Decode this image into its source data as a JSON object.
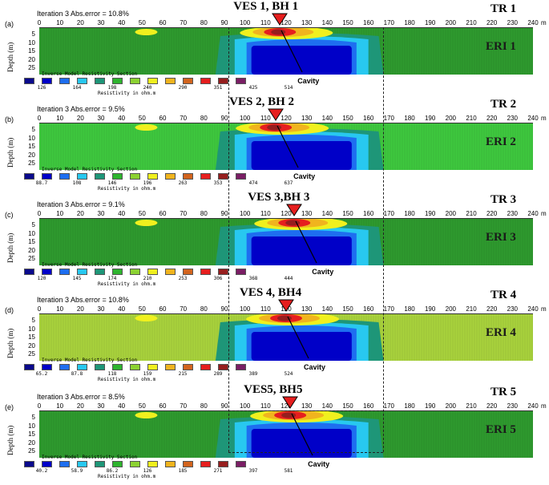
{
  "x_ticks": [
    "0",
    "10",
    "20",
    "30",
    "40",
    "50",
    "60",
    "70",
    "80",
    "90",
    "100",
    "110",
    "120",
    "130",
    "140",
    "150",
    "160",
    "170",
    "180",
    "190",
    "200",
    "210",
    "220",
    "230",
    "240"
  ],
  "x_unit": "m",
  "depth_ticks": [
    "5",
    "10",
    "15",
    "20",
    "25"
  ],
  "depth_title": "Depth (m)",
  "cavity_label": "Cavity",
  "legend_title": "Inverse Model Resistivity Section",
  "legend_unit": "Resistivity in ohm.m",
  "legend_colors": [
    "#0a0a8c",
    "#0000c8",
    "#1e6ef0",
    "#28c8f0",
    "#1e9678",
    "#2eb42e",
    "#8cd232",
    "#f0f01e",
    "#f0b41e",
    "#d2641e",
    "#e61e1e",
    "#961e1e",
    "#7a1e64"
  ],
  "panels": [
    {
      "tag": "(a)",
      "iteration": "Iteration 3 Abs.error = 10.8%",
      "tr": "TR 1",
      "ves": "VES 1, BH 1",
      "eri": "ERI  1",
      "legend_values": [
        "126",
        "164",
        "198",
        "240",
        "290",
        "351",
        "425",
        "514"
      ],
      "bg": "#2e9a2e",
      "cavity_center_m": 117
    },
    {
      "tag": "(b)",
      "iteration": "Iteration 3 Abs.error = 9.5%",
      "tr": "TR 2",
      "ves": "VES 2, BH 2",
      "eri": "ERI   2",
      "legend_values": [
        "88.7",
        "108",
        "146",
        "196",
        "263",
        "353",
        "474",
        "637"
      ],
      "bg": "#3ec83e",
      "cavity_center_m": 115
    },
    {
      "tag": "(c)",
      "iteration": "Iteration 3 Abs.error = 9.1%",
      "tr": "TR 3",
      "ves": "VES 3,BH 3",
      "eri": "ERI  3",
      "legend_values": [
        "120",
        "145",
        "174",
        "210",
        "253",
        "306",
        "368",
        "444"
      ],
      "bg": "#2e9a2e",
      "cavity_center_m": 124
    },
    {
      "tag": "(d)",
      "iteration": "Iteration 3 Abs.error = 10.8%",
      "tr": "TR 4",
      "ves": "VES 4, BH4",
      "eri": "ERI  4",
      "legend_values": [
        "65.2",
        "87.8",
        "118",
        "159",
        "215",
        "289",
        "389",
        "524"
      ],
      "bg": "#a8d23c",
      "cavity_center_m": 120
    },
    {
      "tag": "(e)",
      "iteration": "Iteration 3 Abs.error = 8.5%",
      "tr": "TR 5",
      "ves": "VES5, BH5",
      "eri": "ERI   5",
      "legend_values": [
        "40.2",
        "58.9",
        "86.2",
        "126",
        "185",
        "271",
        "397",
        "581"
      ],
      "bg": "#2e9a2e",
      "cavity_center_m": 122
    }
  ]
}
